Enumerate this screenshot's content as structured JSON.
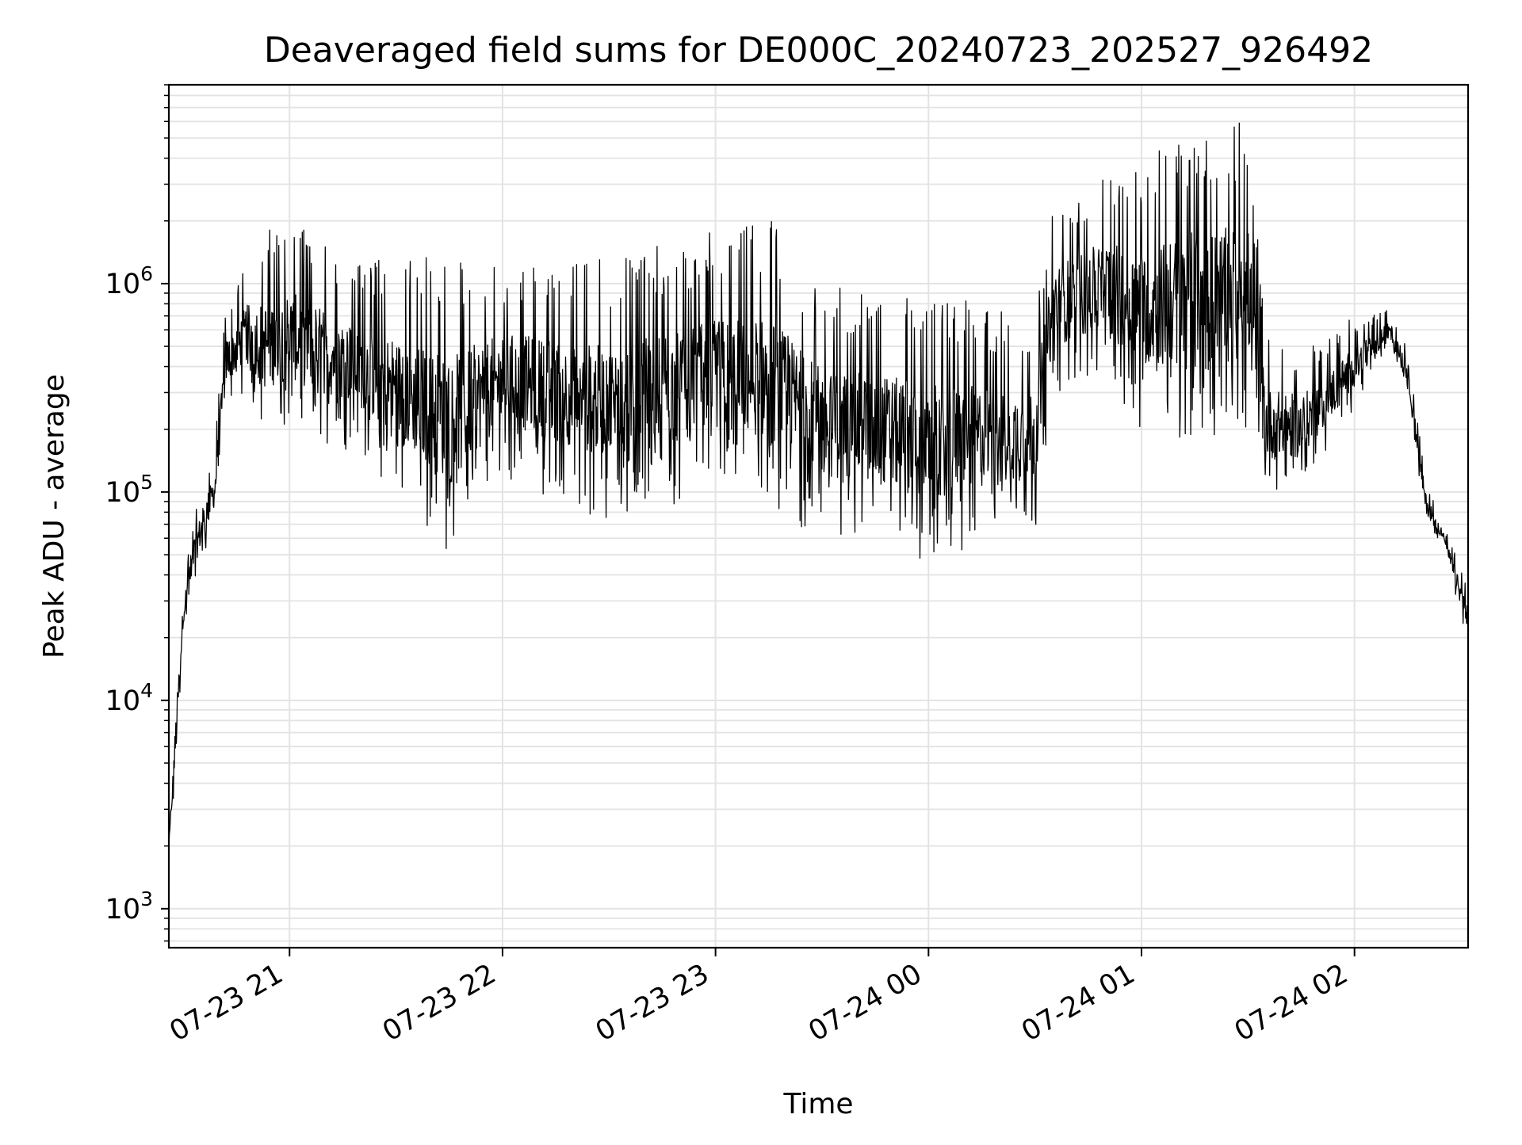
{
  "chart_data": {
    "type": "line",
    "title": "Deaveraged field sums for DE000C_20240723_202527_926492",
    "xlabel": "Time",
    "ylabel": "Peak ADU - average",
    "yscale": "log",
    "grid": true,
    "grid_minor": true,
    "xlim": [
      "2024-07-23 20:26",
      "2024-07-24 02:32"
    ],
    "ylim": [
      650,
      9000000
    ],
    "x_ticks": [
      {
        "value": "2024-07-23 21:00",
        "label": "07-23 21"
      },
      {
        "value": "2024-07-23 22:00",
        "label": "07-23 22"
      },
      {
        "value": "2024-07-23 23:00",
        "label": "07-23 23"
      },
      {
        "value": "2024-07-24 00:00",
        "label": "07-24 00"
      },
      {
        "value": "2024-07-24 01:00",
        "label": "07-24 01"
      },
      {
        "value": "2024-07-24 02:00",
        "label": "07-24 02"
      }
    ],
    "y_ticks": [
      {
        "value": 1000,
        "base": "10",
        "exp": "3"
      },
      {
        "value": 10000,
        "base": "10",
        "exp": "4"
      },
      {
        "value": 100000,
        "base": "10",
        "exp": "5"
      },
      {
        "value": 1000000,
        "base": "10",
        "exp": "6"
      }
    ],
    "colors": {
      "line": "#000000",
      "grid": "#e3e3e3",
      "axes": "#000000"
    },
    "series": [
      {
        "description_points": "upper and lower envelope sampled over time; line oscillates rapidly between them",
        "envelope": [
          {
            "x": "2024-07-23 20:26",
            "lo": 2000,
            "hi": 2000
          },
          {
            "x": "2024-07-23 20:28",
            "lo": 4000,
            "hi": 13000
          },
          {
            "x": "2024-07-23 20:30",
            "lo": 20000,
            "hi": 35000
          },
          {
            "x": "2024-07-23 20:33",
            "lo": 35000,
            "hi": 80000
          },
          {
            "x": "2024-07-23 20:36",
            "lo": 50000,
            "hi": 120000
          },
          {
            "x": "2024-07-23 20:39",
            "lo": 70000,
            "hi": 170000
          },
          {
            "x": "2024-07-23 20:42",
            "lo": 250000,
            "hi": 800000
          },
          {
            "x": "2024-07-23 20:48",
            "lo": 300000,
            "hi": 1300000
          },
          {
            "x": "2024-07-23 20:53",
            "lo": 180000,
            "hi": 1800000
          },
          {
            "x": "2024-07-23 21:00",
            "lo": 200000,
            "hi": 2000000
          },
          {
            "x": "2024-07-23 21:20",
            "lo": 150000,
            "hi": 1300000
          },
          {
            "x": "2024-07-23 21:45",
            "lo": 50000,
            "hi": 1400000
          },
          {
            "x": "2024-07-23 22:00",
            "lo": 120000,
            "hi": 1300000
          },
          {
            "x": "2024-07-23 22:30",
            "lo": 70000,
            "hi": 1400000
          },
          {
            "x": "2024-07-23 23:00",
            "lo": 100000,
            "hi": 1800000
          },
          {
            "x": "2024-07-23 23:15",
            "lo": 80000,
            "hi": 2100000
          },
          {
            "x": "2024-07-23 23:30",
            "lo": 60000,
            "hi": 1000000
          },
          {
            "x": "2024-07-23 23:45",
            "lo": 55000,
            "hi": 1000000
          },
          {
            "x": "2024-07-24 00:00",
            "lo": 45000,
            "hi": 900000
          },
          {
            "x": "2024-07-24 00:15",
            "lo": 55000,
            "hi": 800000
          },
          {
            "x": "2024-07-24 00:30",
            "lo": 65000,
            "hi": 700000
          },
          {
            "x": "2024-07-24 00:35",
            "lo": 300000,
            "hi": 2500000
          },
          {
            "x": "2024-07-24 00:50",
            "lo": 350000,
            "hi": 3500000
          },
          {
            "x": "2024-07-24 01:00",
            "lo": 200000,
            "hi": 4000000
          },
          {
            "x": "2024-07-24 01:15",
            "lo": 150000,
            "hi": 6500000
          },
          {
            "x": "2024-07-24 01:30",
            "lo": 200000,
            "hi": 6000000
          },
          {
            "x": "2024-07-24 01:35",
            "lo": 90000,
            "hi": 600000
          },
          {
            "x": "2024-07-24 01:45",
            "lo": 100000,
            "hi": 500000
          },
          {
            "x": "2024-07-24 02:00",
            "lo": 250000,
            "hi": 700000
          },
          {
            "x": "2024-07-24 02:10",
            "lo": 500000,
            "hi": 750000
          },
          {
            "x": "2024-07-24 02:15",
            "lo": 300000,
            "hi": 500000
          },
          {
            "x": "2024-07-24 02:20",
            "lo": 70000,
            "hi": 120000
          },
          {
            "x": "2024-07-24 02:25",
            "lo": 55000,
            "hi": 70000
          },
          {
            "x": "2024-07-24 02:32",
            "lo": 18000,
            "hi": 35000
          }
        ]
      }
    ]
  }
}
